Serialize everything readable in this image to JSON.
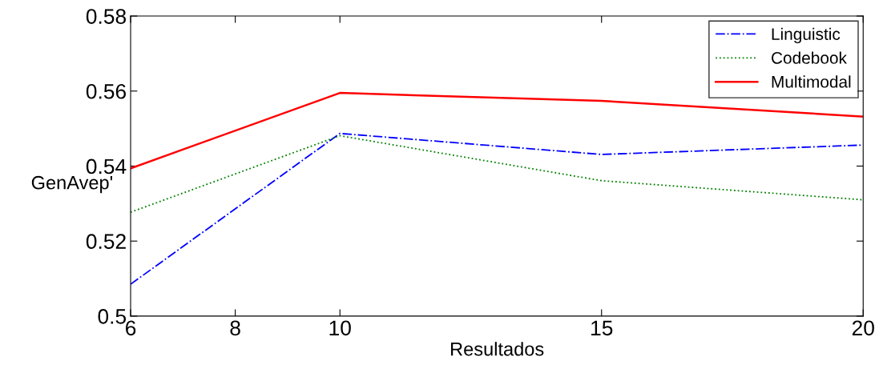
{
  "chart_data": {
    "type": "line",
    "xlabel": "Resultados",
    "ylabel": "GenAvep'",
    "x": [
      6,
      10,
      15,
      20
    ],
    "series": [
      {
        "name": "Linguistic",
        "color": "#0000ff",
        "line_style": "dashdot",
        "values": [
          0.5085,
          0.5487,
          0.5431,
          0.5456
        ]
      },
      {
        "name": "Codebook",
        "color": "#008000",
        "line_style": "dotted",
        "values": [
          0.5277,
          0.5481,
          0.5361,
          0.531
        ]
      },
      {
        "name": "Multimodal",
        "color": "#ff0000",
        "line_style": "solid",
        "values": [
          0.5394,
          0.5595,
          0.5574,
          0.5532
        ]
      }
    ],
    "xlim": [
      6,
      20
    ],
    "xticks": [
      6,
      8,
      10,
      15,
      20
    ],
    "ylim": [
      0.5,
      0.58
    ],
    "yticks": [
      0.5,
      0.52,
      0.54,
      0.56,
      0.58
    ],
    "grid": false,
    "legend": "top right",
    "marker": "none"
  }
}
